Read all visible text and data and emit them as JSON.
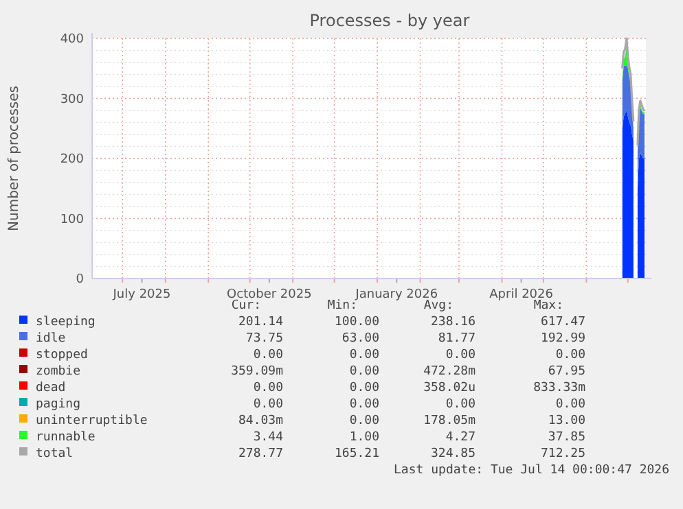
{
  "chart_data": {
    "type": "area",
    "stacked": true,
    "title": "Processes - by year",
    "ylabel": "Number of processes",
    "x": [
      "2026-06-27",
      "2026-06-28",
      "2026-06-29",
      "2026-06-30",
      "2026-07-01",
      "2026-07-02",
      "2026-07-03",
      "2026-07-04",
      "2026-07-05",
      "2026-07-06",
      "2026-07-07",
      "2026-07-08",
      "2026-07-09",
      "2026-07-10",
      "2026-07-11",
      "2026-07-12",
      "2026-07-13"
    ],
    "xlim": [
      "2025-06-09",
      "2026-07-14"
    ],
    "xticks": [
      {
        "value": "2025-07-01",
        "label": null
      },
      {
        "value": "2025-07-15",
        "label": "July 2025"
      },
      {
        "value": "2025-08-01",
        "label": null
      },
      {
        "value": "2025-09-01",
        "label": null
      },
      {
        "value": "2025-10-01",
        "label": null
      },
      {
        "value": "2025-10-15",
        "label": "October 2025"
      },
      {
        "value": "2025-11-01",
        "label": null
      },
      {
        "value": "2025-12-01",
        "label": null
      },
      {
        "value": "2026-01-01",
        "label": null
      },
      {
        "value": "2026-01-15",
        "label": "January 2026"
      },
      {
        "value": "2026-02-01",
        "label": null
      },
      {
        "value": "2026-03-01",
        "label": null
      },
      {
        "value": "2026-04-01",
        "label": null
      },
      {
        "value": "2026-04-15",
        "label": "April 2026"
      },
      {
        "value": "2026-05-01",
        "label": null
      },
      {
        "value": "2026-06-01",
        "label": null
      },
      {
        "value": "2026-07-01",
        "label": null
      }
    ],
    "ylim": [
      0,
      400
    ],
    "yticks": [
      0,
      100,
      200,
      300,
      400
    ],
    "grid": true,
    "legend": "bottom",
    "series": [
      {
        "name": "sleeping",
        "color": "#0033ff",
        "values": [
          250,
          270,
          275,
          280,
          270,
          260,
          255,
          240,
          230,
          null,
          null,
          150,
          200,
          210,
          205,
          200,
          201
        ]
      },
      {
        "name": "idle",
        "color": "#4a6fe0",
        "values": [
          80,
          85,
          80,
          75,
          80,
          75,
          70,
          40,
          20,
          null,
          null,
          60,
          70,
          75,
          74,
          74,
          74
        ]
      },
      {
        "name": "stopped",
        "color": "#cc0000",
        "values": [
          null,
          null,
          null,
          null,
          null,
          null,
          null,
          null,
          null,
          null,
          null,
          null,
          null,
          null,
          null,
          null,
          null
        ]
      },
      {
        "name": "zombie",
        "color": "#990000",
        "values": [
          null,
          null,
          null,
          null,
          null,
          null,
          null,
          null,
          null,
          null,
          null,
          null,
          null,
          null,
          null,
          null,
          null
        ]
      },
      {
        "name": "dead",
        "color": "#ff0000",
        "values": [
          null,
          null,
          null,
          null,
          null,
          null,
          null,
          null,
          null,
          null,
          null,
          null,
          null,
          null,
          null,
          null,
          null
        ]
      },
      {
        "name": "paging",
        "color": "#00aaaa",
        "values": [
          null,
          null,
          null,
          null,
          null,
          null,
          null,
          null,
          null,
          null,
          null,
          null,
          null,
          null,
          null,
          null,
          null
        ]
      },
      {
        "name": "uninterruptible",
        "color": "#ffaa00",
        "values": [
          null,
          null,
          null,
          null,
          null,
          null,
          null,
          null,
          null,
          null,
          null,
          null,
          null,
          null,
          null,
          null,
          null
        ]
      },
      {
        "name": "runnable",
        "color": "#22ff22",
        "values": [
          8,
          10,
          15,
          37,
          8,
          6,
          5,
          4,
          4,
          null,
          null,
          4,
          4,
          4,
          3,
          3,
          3
        ]
      },
      {
        "name": "total",
        "type": "line",
        "color": "#a8a8a8",
        "values": [
          350,
          378,
          382,
          400,
          370,
          352,
          340,
          295,
          262,
          null,
          null,
          222,
          282,
          296,
          289,
          282,
          279
        ]
      }
    ],
    "annotations": [
      "Cur:",
      "Min:",
      "Avg:",
      "Max:",
      "201.14",
      "100.00",
      "238.16",
      "617.47",
      "73.75",
      "63.00",
      "81.77",
      "192.99",
      "0.00",
      "0.00",
      "0.00",
      "0.00",
      "359.09m",
      "0.00",
      "472.28m",
      "67.95",
      "0.00",
      "0.00",
      "358.02u",
      "833.33m",
      "0.00",
      "0.00",
      "0.00",
      "0.00",
      "84.03m",
      "0.00",
      "178.05m",
      "13.00",
      "3.44",
      "1.00",
      "4.27",
      "37.85",
      "278.77",
      "165.21",
      "324.85",
      "712.25",
      "Last update: Tue Jul 14 00:00:47 2026"
    ]
  }
}
